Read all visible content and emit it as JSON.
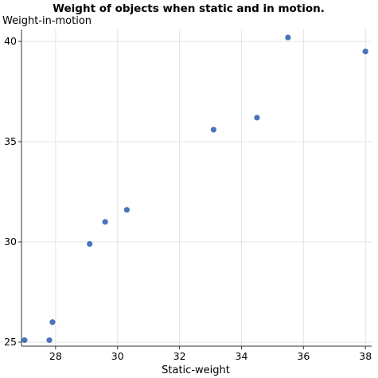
{
  "chart_data": {
    "type": "scatter",
    "title": "Weight of objects when static and in motion.",
    "xlabel": "Static-weight",
    "ylabel": "Weight-in-motion",
    "xlim": [
      26.9,
      38.2
    ],
    "ylim": [
      24.8,
      40.6
    ],
    "x_ticks": [
      28,
      30,
      32,
      34,
      36,
      38
    ],
    "y_ticks": [
      25,
      30,
      35,
      40
    ],
    "grid": true,
    "marker_color": "#4a74b9",
    "series": [
      {
        "points": [
          {
            "x": 27.0,
            "y": 25.1
          },
          {
            "x": 27.8,
            "y": 25.1
          },
          {
            "x": 27.9,
            "y": 26.0
          },
          {
            "x": 29.1,
            "y": 29.9
          },
          {
            "x": 29.6,
            "y": 31.0
          },
          {
            "x": 30.3,
            "y": 31.6
          },
          {
            "x": 33.1,
            "y": 35.6
          },
          {
            "x": 34.5,
            "y": 36.2
          },
          {
            "x": 35.5,
            "y": 40.2
          },
          {
            "x": 38.0,
            "y": 39.5
          }
        ]
      }
    ]
  }
}
